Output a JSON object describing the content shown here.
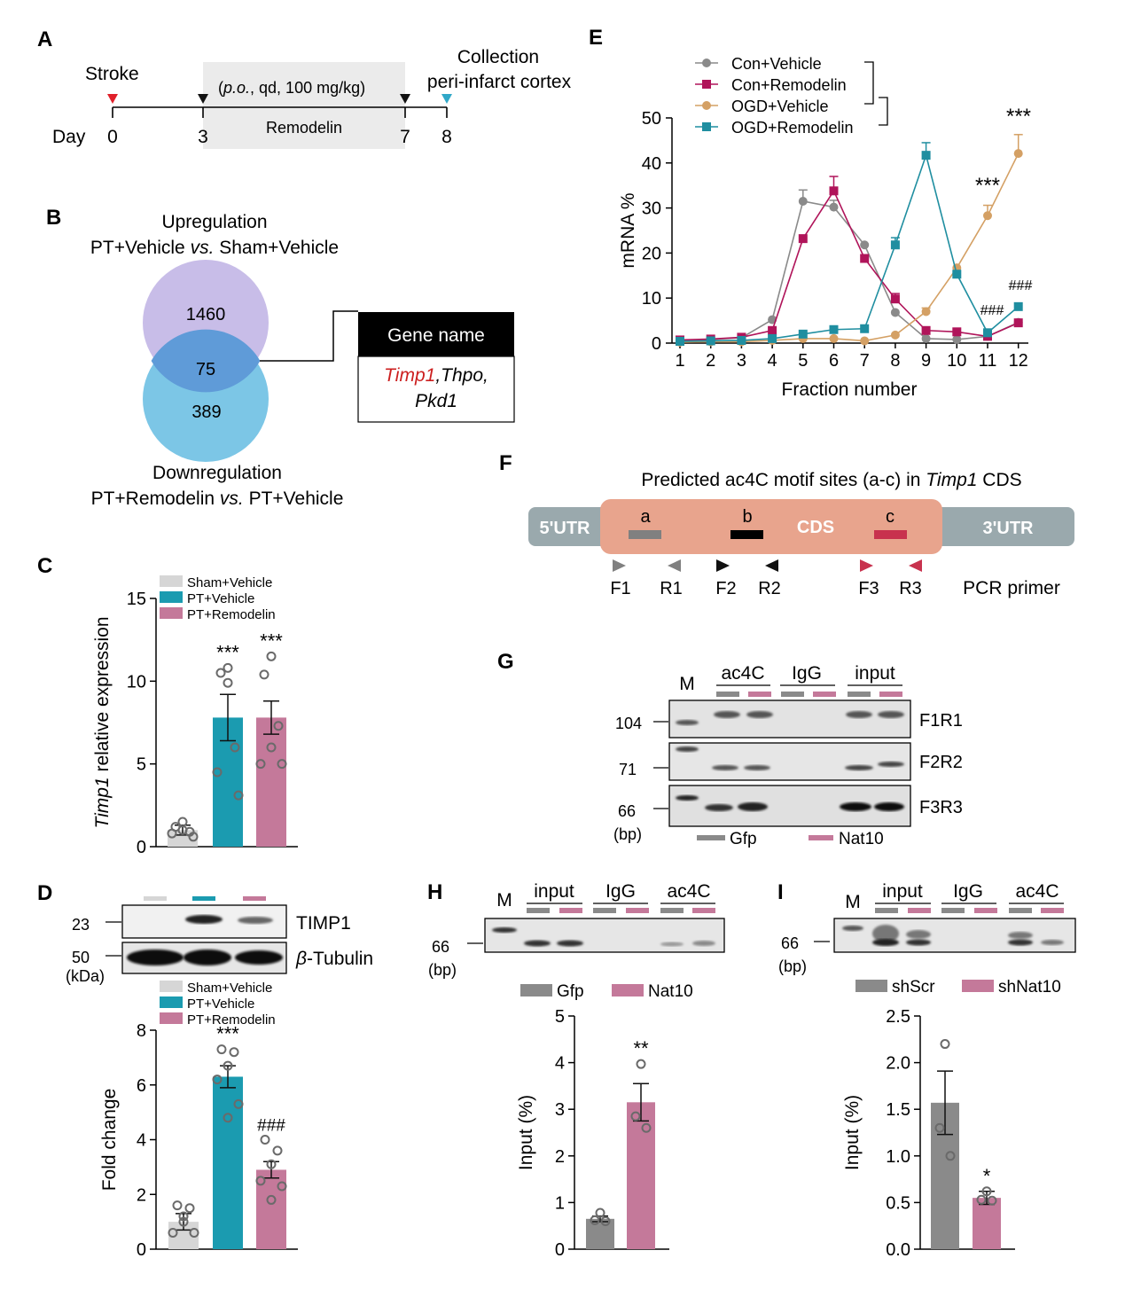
{
  "colors": {
    "grey": "#8a8a8a",
    "light_grey": "#d6d6d6",
    "teal": "#1b9bb0",
    "pink": "#c4799a",
    "magenta": "#b0145a",
    "gold": "#d4a064",
    "ogd_teal": "#1f8ea0",
    "venn_up": "#c8bde8",
    "venn_down": "#7cc6e6",
    "venn_overlap": "#5f9bd8",
    "utr": "#9aa9ad",
    "cds": "#e8a48d",
    "site_a": "#808080",
    "site_b": "#000000",
    "site_c": "#c8324e",
    "red": "#cc1f1f",
    "marker_red": "#e0202a",
    "marker_teal": "#30a8c8"
  },
  "panelA": {
    "letter": "A",
    "stroke_label": "Stroke",
    "day_label": "Day",
    "days": [
      "0",
      "3",
      "7",
      "8"
    ],
    "treatment_prefix": "(",
    "treatment_route": "p.o.",
    "treatment_suffix": ", qd, 100 mg/kg)",
    "drug": "Remodelin",
    "collection_line1": "Collection",
    "collection_line2": "peri-infarct cortex"
  },
  "panelB": {
    "letter": "B",
    "up_line1": "Upregulation",
    "up_line2_a": "PT+Vehicle ",
    "up_line2_vs": "vs.",
    "up_line2_b": " Sham+Vehicle",
    "up_count": "1460",
    "overlap_count": "75",
    "down_count": "389",
    "down_line1": "Downregulation",
    "down_line2_a": "PT+Remodelin ",
    "down_line2_vs": "vs.",
    "down_line2_b": " PT+Vehicle",
    "gene_header": "Gene name",
    "gene_timp1": "Timp1",
    "gene_rest1": ",Thpo,",
    "gene_rest2": "Pkd1"
  },
  "panelC": {
    "letter": "C"
  },
  "panelD": {
    "letter": "D",
    "blot_labels": {
      "timp1": "TIMP1",
      "tubulin_beta": "β",
      "tubulin_rest": "-Tubulin",
      "size23": "23",
      "size50": "50",
      "kda": "(kDa)"
    }
  },
  "panelE": {
    "letter": "E"
  },
  "panelF": {
    "letter": "F",
    "title_a": "Predicted ac4C motif sites (a-c) in ",
    "title_gene": "Timp1",
    "title_b": " CDS",
    "utr5": "5'UTR",
    "cds": "CDS",
    "utr3": "3'UTR",
    "sites": [
      "a",
      "b",
      "c"
    ],
    "primers": [
      "F1",
      "R1",
      "F2",
      "R2",
      "F3",
      "R3"
    ],
    "primer_label": "PCR primer"
  },
  "panelG": {
    "letter": "G",
    "marker": "M",
    "groups": [
      "ac4C",
      "IgG",
      "input"
    ],
    "rows": [
      "F1R1",
      "F2R2",
      "F3R3"
    ],
    "sizes": [
      "104",
      "71",
      "66"
    ],
    "bp": "(bp)",
    "legend": [
      "Gfp",
      "Nat10"
    ]
  },
  "panelH": {
    "letter": "H",
    "marker": "M",
    "groups": [
      "input",
      "IgG",
      "ac4C"
    ],
    "size": "66",
    "bp": "(bp)"
  },
  "panelI": {
    "letter": "I",
    "marker": "M",
    "groups": [
      "input",
      "IgG",
      "ac4C"
    ],
    "size": "66",
    "bp": "(bp)"
  },
  "chart_data": [
    {
      "id": "C",
      "type": "bar",
      "ylabel_gene": "Timp1",
      "ylabel_rest": " relative expression",
      "ylim": [
        0,
        15
      ],
      "yticks": [
        0,
        5,
        10,
        15
      ],
      "legend": [
        "Sham+Vehicle",
        "PT+Vehicle",
        "PT+Remodelin"
      ],
      "categories": [
        "Sham+Vehicle",
        "PT+Vehicle",
        "PT+Remodelin"
      ],
      "values": [
        1.0,
        7.8,
        7.8
      ],
      "errors": [
        0.3,
        1.4,
        1.0
      ],
      "points": [
        [
          1.5,
          1.2,
          0.9,
          0.8,
          0.6,
          1.0
        ],
        [
          10.8,
          10.5,
          6.0,
          4.5,
          3.1,
          9.9
        ],
        [
          11.5,
          10.4,
          7.3,
          5.0,
          5.0,
          6.0
        ]
      ],
      "annotations": [
        "",
        "***",
        "***"
      ]
    },
    {
      "id": "D",
      "type": "bar",
      "ylabel": "Fold change",
      "ylim": [
        0,
        8
      ],
      "yticks": [
        0,
        2,
        4,
        6,
        8
      ],
      "legend": [
        "Sham+Vehicle",
        "PT+Vehicle",
        "PT+Remodelin"
      ],
      "categories": [
        "Sham+Vehicle",
        "PT+Vehicle",
        "PT+Remodelin"
      ],
      "values": [
        1.0,
        6.3,
        2.9
      ],
      "errors": [
        0.3,
        0.4,
        0.3
      ],
      "points": [
        [
          1.6,
          1.5,
          1.0,
          0.6,
          0.6,
          1.2
        ],
        [
          7.3,
          7.2,
          6.7,
          6.2,
          5.3,
          4.8
        ],
        [
          4.0,
          3.6,
          3.1,
          2.5,
          2.3,
          1.8
        ]
      ],
      "annotations": [
        "",
        "***",
        "###"
      ]
    },
    {
      "id": "E",
      "type": "line",
      "xlabel": "Fraction number",
      "ylabel": "mRNA %",
      "x": [
        1,
        2,
        3,
        4,
        5,
        6,
        7,
        8,
        9,
        10,
        11,
        12
      ],
      "ylim": [
        0,
        50
      ],
      "yticks": [
        0,
        10,
        20,
        30,
        40,
        50
      ],
      "series": [
        {
          "name": "Con+Vehicle",
          "marker": "circle",
          "values": [
            0.5,
            0.8,
            1.2,
            5.2,
            31.5,
            30.2,
            21.8,
            6.8,
            1.0,
            0.8,
            1.5,
            4.6
          ],
          "errors": [
            0,
            0,
            0,
            0,
            2.5,
            1.5,
            0,
            0,
            0,
            0,
            0,
            0
          ]
        },
        {
          "name": "Con+Remodelin",
          "marker": "square",
          "values": [
            0.7,
            0.9,
            1.3,
            2.8,
            23.2,
            33.8,
            18.8,
            9.8,
            2.8,
            2.5,
            1.5,
            4.5
          ],
          "errors": [
            0,
            0,
            0,
            0,
            0,
            3.2,
            0,
            1.2,
            0,
            0,
            0,
            0
          ]
        },
        {
          "name": "OGD+Vehicle",
          "marker": "circle",
          "values": [
            0.2,
            0.3,
            0.3,
            0.6,
            1.0,
            1.0,
            0.5,
            1.8,
            7.0,
            16.7,
            28.3,
            42.1
          ],
          "errors": [
            0,
            0,
            0,
            0,
            0,
            0,
            0,
            0,
            0.8,
            0,
            2.3,
            4.2
          ]
        },
        {
          "name": "OGD+Remodelin",
          "marker": "square",
          "values": [
            0.4,
            0.5,
            0.6,
            1.0,
            2.0,
            3.0,
            3.2,
            21.8,
            41.7,
            15.3,
            2.3,
            8.1
          ],
          "errors": [
            0,
            0,
            0,
            0,
            0,
            0,
            0,
            1.6,
            2.8,
            0,
            0,
            0
          ]
        }
      ],
      "annotations": [
        {
          "x": 11,
          "text": "***"
        },
        {
          "x": 12,
          "text": "***"
        },
        {
          "x": 11,
          "text": "###"
        },
        {
          "x": 12,
          "text": "###"
        }
      ]
    },
    {
      "id": "H",
      "type": "bar",
      "ylabel": "Input (%)",
      "ylim": [
        0,
        5
      ],
      "yticks": [
        0,
        1,
        2,
        3,
        4,
        5
      ],
      "legend": [
        "Gfp",
        "Nat10"
      ],
      "categories": [
        "Gfp",
        "Nat10"
      ],
      "values": [
        0.65,
        3.15
      ],
      "errors": [
        0.06,
        0.4
      ],
      "points": [
        [
          0.78,
          0.62,
          0.6
        ],
        [
          3.97,
          2.85,
          2.6
        ]
      ],
      "annotations": [
        "",
        "**"
      ]
    },
    {
      "id": "I",
      "type": "bar",
      "ylabel": "Input (%)",
      "ylim": [
        0,
        2.5
      ],
      "yticks": [
        0.0,
        0.5,
        1.0,
        1.5,
        2.0,
        2.5
      ],
      "tick_labels": [
        "0.0",
        "0.5",
        "1.0",
        "1.5",
        "2.0",
        "2.5"
      ],
      "legend": [
        "shScr",
        "shNat10"
      ],
      "categories": [
        "shScr",
        "shNat10"
      ],
      "values": [
        1.57,
        0.55
      ],
      "errors": [
        0.34,
        0.07
      ],
      "points": [
        [
          2.2,
          1.3,
          1.0
        ],
        [
          0.62,
          0.53,
          0.52
        ]
      ],
      "annotations": [
        "",
        "*"
      ]
    }
  ]
}
